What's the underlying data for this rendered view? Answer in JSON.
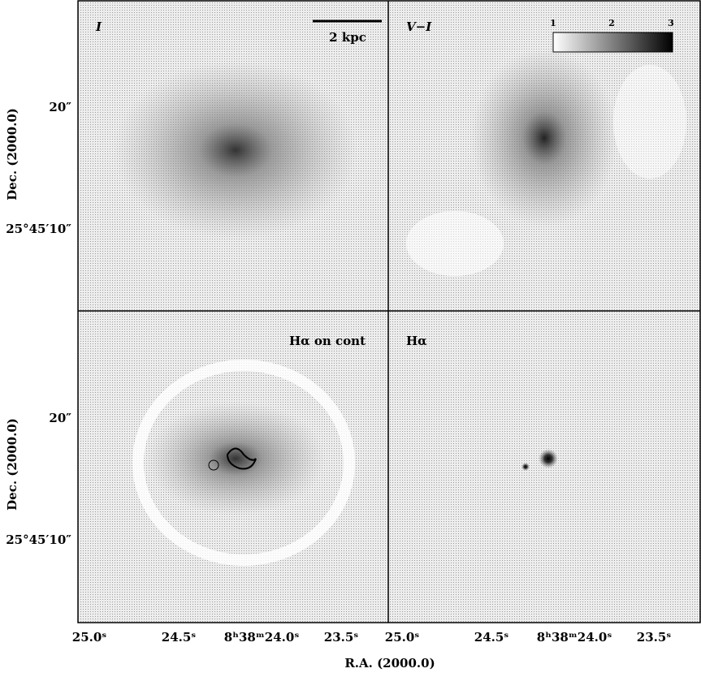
{
  "panels": [
    {
      "label": "I",
      "scale_bar": "2 kpc"
    },
    {
      "label": "V−I",
      "colorbar_ticks": [
        "1",
        "2",
        "3"
      ]
    },
    {
      "label": "Hα on cont"
    },
    {
      "label": "Hα"
    }
  ],
  "y_axis": {
    "title": "Dec. (2000.0)",
    "ticks": [
      "20″",
      "25°45′10″"
    ]
  },
  "x_axis": {
    "title": "R.A. (2000.0)",
    "ticks": [
      "25.0ˢ",
      "24.5ˢ",
      "8ʰ38ᵐ24.0ˢ",
      "23.5ˢ"
    ]
  }
}
